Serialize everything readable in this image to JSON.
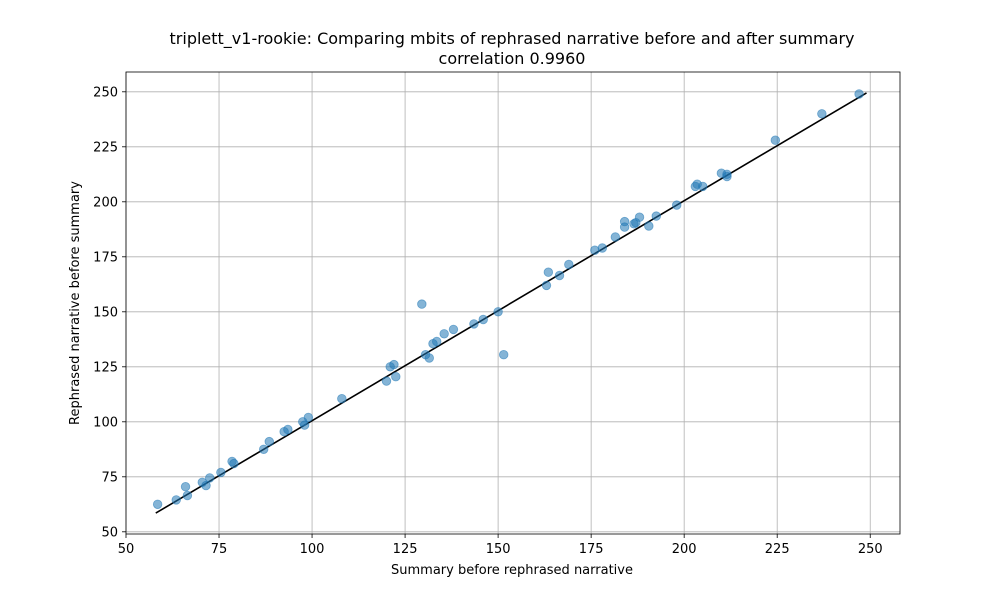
{
  "chart_data": {
    "type": "scatter",
    "title": "triplett_v1-rookie: Comparing mbits of rephrased narrative before and after summary",
    "subtitle": "correlation 0.9960",
    "xlabel": "Summary before rephrased narrative",
    "ylabel": "Rephrased narrative before summary",
    "xlim": [
      50,
      258
    ],
    "ylim": [
      49,
      259
    ],
    "xticks": [
      50,
      75,
      100,
      125,
      150,
      175,
      200,
      225,
      250
    ],
    "yticks": [
      50,
      75,
      100,
      125,
      150,
      175,
      200,
      225,
      250
    ],
    "grid": true,
    "point_color": "#1f77b4",
    "line_color": "#000000",
    "trend_line": {
      "x": [
        58,
        249
      ],
      "y": [
        58.5,
        249.5
      ]
    },
    "points": [
      [
        58.5,
        62.5
      ],
      [
        63.5,
        64.5
      ],
      [
        66,
        70.5
      ],
      [
        66.5,
        66.5
      ],
      [
        70.5,
        72.5
      ],
      [
        71.5,
        71
      ],
      [
        72.5,
        74.5
      ],
      [
        75.5,
        77
      ],
      [
        78.5,
        82
      ],
      [
        79,
        81
      ],
      [
        87,
        87.5
      ],
      [
        88.5,
        91
      ],
      [
        92.5,
        95.5
      ],
      [
        93.5,
        96.5
      ],
      [
        97.5,
        100
      ],
      [
        98,
        98.5
      ],
      [
        99,
        102
      ],
      [
        108,
        110.5
      ],
      [
        120,
        118.5
      ],
      [
        121,
        125
      ],
      [
        122,
        126
      ],
      [
        122.5,
        120.5
      ],
      [
        129.5,
        153.5
      ],
      [
        130.5,
        130.5
      ],
      [
        131.5,
        129
      ],
      [
        132.5,
        135.5
      ],
      [
        133.5,
        136.5
      ],
      [
        135.5,
        140
      ],
      [
        138,
        142
      ],
      [
        143.5,
        144.5
      ],
      [
        146,
        146.5
      ],
      [
        150,
        150
      ],
      [
        151.5,
        130.5
      ],
      [
        163,
        162
      ],
      [
        163.5,
        168
      ],
      [
        166.5,
        166.5
      ],
      [
        169,
        171.5
      ],
      [
        176,
        178
      ],
      [
        178,
        179
      ],
      [
        181.5,
        184
      ],
      [
        184,
        191
      ],
      [
        184,
        188.5
      ],
      [
        186.5,
        190
      ],
      [
        187,
        190.5
      ],
      [
        188,
        193
      ],
      [
        190.5,
        189
      ],
      [
        192.5,
        193.5
      ],
      [
        198,
        198.5
      ],
      [
        203,
        207
      ],
      [
        203.5,
        208
      ],
      [
        205,
        207
      ],
      [
        210,
        213
      ],
      [
        211.5,
        212.5
      ],
      [
        211.5,
        211.5
      ],
      [
        224.5,
        228
      ],
      [
        237,
        240
      ],
      [
        247,
        249
      ]
    ]
  }
}
